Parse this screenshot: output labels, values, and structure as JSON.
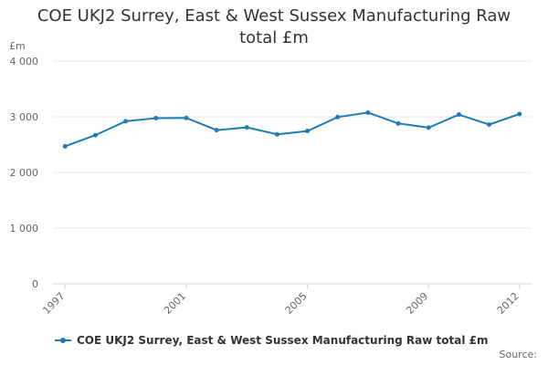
{
  "title_line1": "COE UKJ2 Surrey, East & West Sussex Manufacturing Raw",
  "title_line2": "total £m",
  "unit_label": "£m",
  "source_label": "Source:",
  "colors": {
    "series": "#1f7cb5",
    "grid": "#e6e6e6",
    "axis": "#ccd6eb"
  },
  "chart_data": {
    "type": "line",
    "title": "COE UKJ2 Surrey, East & West Sussex Manufacturing Raw total £m",
    "ylabel": "£m",
    "xlabel": "",
    "ylim": [
      0,
      4000
    ],
    "yticks": [
      0,
      1000,
      2000,
      3000,
      4000
    ],
    "ytick_labels": [
      "0",
      "1 000",
      "2 000",
      "3 000",
      "4 000"
    ],
    "xticks": [
      1997,
      2001,
      2005,
      2009,
      2012
    ],
    "xtick_labels": [
      "1997",
      "2001",
      "2005",
      "2009",
      "2012"
    ],
    "grid": true,
    "legend_position": "bottom-left",
    "series": [
      {
        "name": "COE UKJ2 Surrey, East & West Sussex Manufacturing Raw total £m",
        "x": [
          1997,
          1998,
          1999,
          2000,
          2001,
          2002,
          2003,
          2004,
          2005,
          2006,
          2007,
          2008,
          2009,
          2010,
          2011,
          2012
        ],
        "values": [
          2470,
          2670,
          2920,
          2975,
          2980,
          2760,
          2810,
          2685,
          2745,
          2995,
          3075,
          2880,
          2805,
          3040,
          2860,
          3050
        ]
      }
    ]
  }
}
